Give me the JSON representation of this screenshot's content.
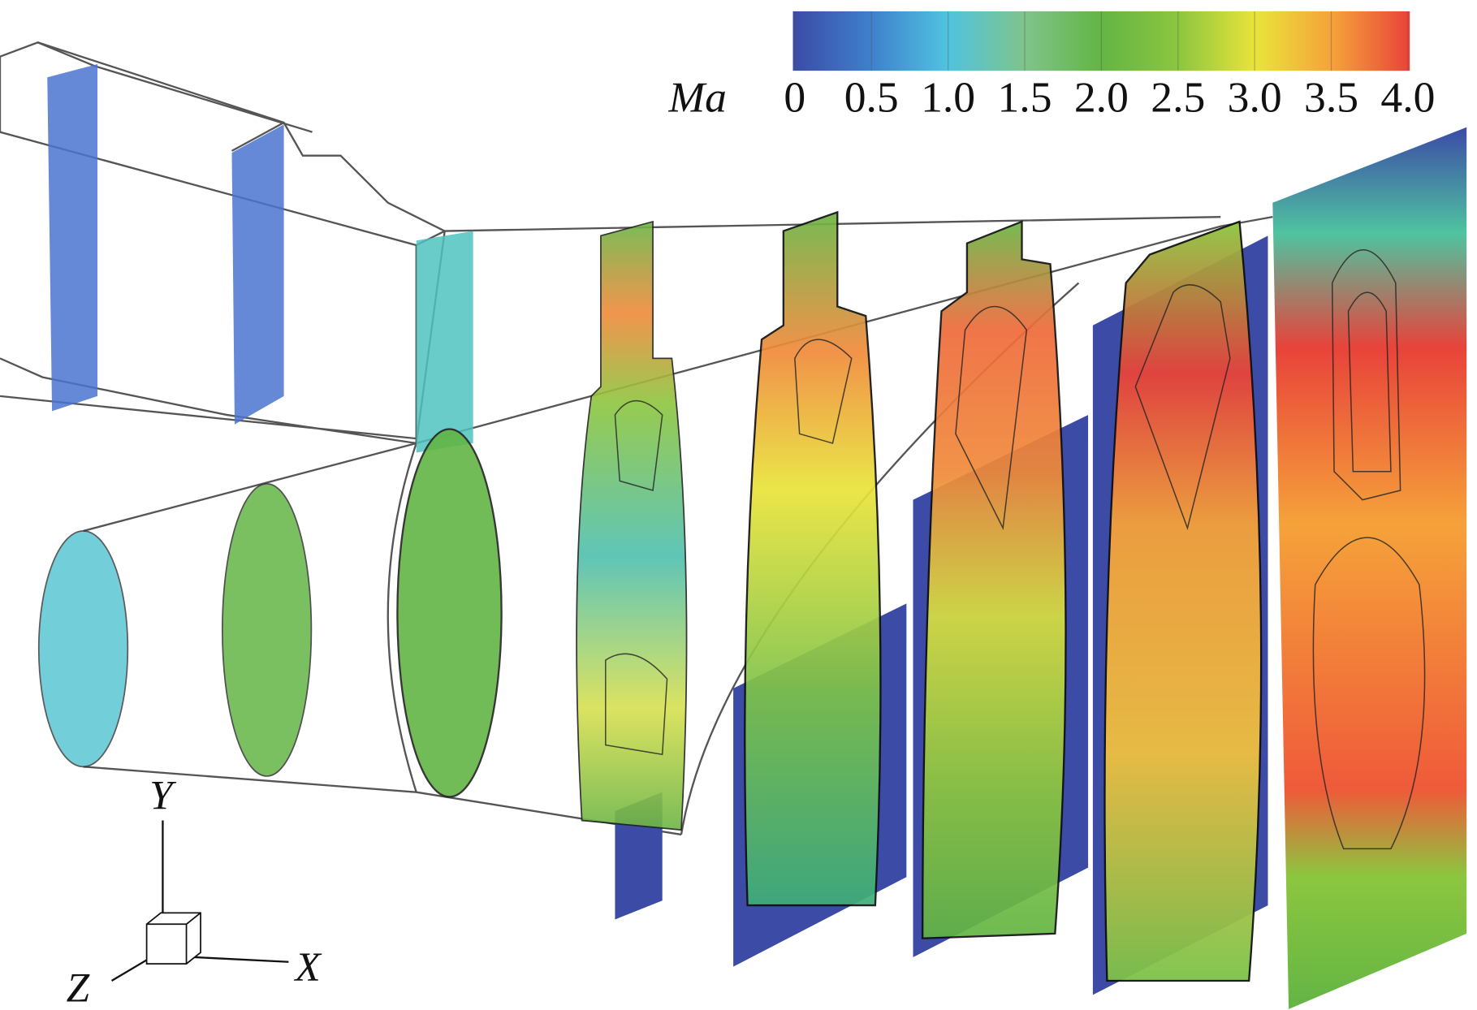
{
  "colorbar": {
    "label": "Ma",
    "range": [
      0,
      4
    ],
    "ticks": [
      0,
      0.5,
      {
        "value": 1,
        "label": "1.0"
      },
      1.5,
      {
        "value": 2,
        "label": "2.0"
      },
      2.5,
      {
        "value": 3,
        "label": "3.0"
      },
      3.5,
      {
        "value": 4,
        "label": "4.0"
      }
    ],
    "colors": [
      "#3b4ba6",
      "#3f7fcb",
      "#4fc3e0",
      "#7fc48c",
      "#63b545",
      "#8cc63f",
      "#e9e43a",
      "#f5a23a",
      "#e8433a"
    ]
  },
  "axes": {
    "y": "Y",
    "z": "Z",
    "x": "X"
  }
}
